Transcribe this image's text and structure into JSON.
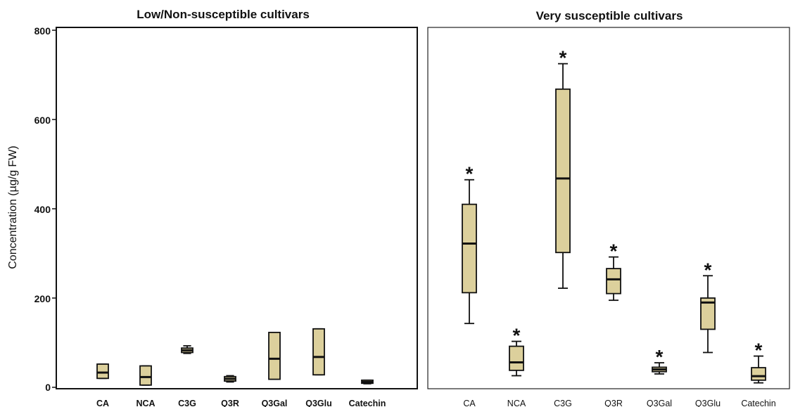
{
  "chart_data": {
    "type": "boxplot",
    "ylabel": "Concentration (µg/g FW)",
    "ylim": [
      0,
      800
    ],
    "yticks": [
      "0",
      "200",
      "400",
      "600",
      "800"
    ],
    "colors": {
      "box_fill": "#dcd09c",
      "stroke": "#111111"
    },
    "categories": [
      "CA",
      "NCA",
      "C3G",
      "Q3R",
      "Q3Gal",
      "Q3Glu",
      "Catechin"
    ],
    "panels": [
      {
        "title": "Low/Non-susceptible cultivars",
        "boxes": [
          {
            "category": "CA",
            "min": 20,
            "q1": 20,
            "median": 33,
            "q3": 52,
            "max": 52,
            "star": false
          },
          {
            "category": "NCA",
            "min": 5,
            "q1": 5,
            "median": 23,
            "q3": 48,
            "max": 48,
            "star": false
          },
          {
            "category": "C3G",
            "min": 76,
            "q1": 78,
            "median": 83,
            "q3": 88,
            "max": 93,
            "star": false
          },
          {
            "category": "Q3R",
            "min": 12,
            "q1": 14,
            "median": 19,
            "q3": 24,
            "max": 26,
            "star": false
          },
          {
            "category": "Q3Gal",
            "min": 18,
            "q1": 18,
            "median": 64,
            "q3": 123,
            "max": 123,
            "star": false
          },
          {
            "category": "Q3Glu",
            "min": 28,
            "q1": 28,
            "median": 68,
            "q3": 131,
            "max": 131,
            "star": false
          },
          {
            "category": "Catechin",
            "min": 8,
            "q1": 9,
            "median": 12,
            "q3": 16,
            "max": 16,
            "star": false
          }
        ]
      },
      {
        "title": "Very susceptible cultivars",
        "boxes": [
          {
            "category": "CA",
            "min": 143,
            "q1": 212,
            "median": 322,
            "q3": 410,
            "max": 465,
            "star": true
          },
          {
            "category": "NCA",
            "min": 26,
            "q1": 38,
            "median": 56,
            "q3": 92,
            "max": 103,
            "star": true
          },
          {
            "category": "C3G",
            "min": 222,
            "q1": 302,
            "median": 468,
            "q3": 668,
            "max": 725,
            "star": true
          },
          {
            "category": "Q3R",
            "min": 195,
            "q1": 210,
            "median": 242,
            "q3": 266,
            "max": 292,
            "star": true
          },
          {
            "category": "Q3Gal",
            "min": 30,
            "q1": 35,
            "median": 40,
            "q3": 45,
            "max": 55,
            "star": true
          },
          {
            "category": "Q3Glu",
            "min": 78,
            "q1": 130,
            "median": 190,
            "q3": 200,
            "max": 250,
            "star": true
          },
          {
            "category": "Catechin",
            "min": 10,
            "q1": 16,
            "median": 25,
            "q3": 44,
            "max": 70,
            "star": true
          }
        ]
      }
    ]
  }
}
